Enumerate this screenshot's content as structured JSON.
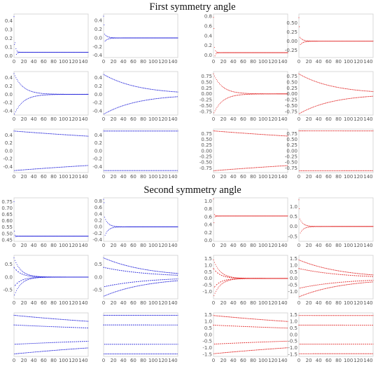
{
  "figure": {
    "sections": [
      {
        "title": "First symmetry angle"
      },
      {
        "title": "Second symmetry angle"
      }
    ]
  },
  "chart_data": [
    {
      "type": "scatter",
      "section": 0,
      "row": 0,
      "col": 0,
      "color": "#1f1fd9",
      "xlim": [
        0,
        150
      ],
      "ylim": [
        -0.02,
        0.48
      ],
      "xticks": [
        0,
        20,
        40,
        60,
        80,
        100,
        120,
        140
      ],
      "yticks": [
        0.0,
        0.1,
        0.2,
        0.3,
        0.4
      ],
      "ytick_labels": [
        "0.0",
        "0.1",
        "0.2",
        "0.3",
        "0.4"
      ],
      "series": [
        {
          "kind": "transient",
          "initial": [
            0.45,
            0.13
          ],
          "final": 0.04,
          "width": 0.3,
          "decay": 2,
          "halfperiod": 1
        }
      ]
    },
    {
      "type": "scatter",
      "section": 0,
      "row": 0,
      "col": 1,
      "color": "#1f1fd9",
      "xlim": [
        0,
        150
      ],
      "ylim": [
        -0.45,
        0.55
      ],
      "xticks": [
        0,
        20,
        40,
        60,
        80,
        100,
        120,
        140
      ],
      "yticks": [
        -0.4,
        -0.2,
        0.0,
        0.2,
        0.4
      ],
      "ytick_labels": [
        "-0.4",
        "-0.2",
        "0.0",
        "0.2",
        "0.4"
      ],
      "series": [
        {
          "kind": "transient",
          "initial": [
            0.5,
            0.3
          ],
          "final": 0.0,
          "width": 0.12,
          "decay": 6,
          "halfperiod": 1
        }
      ]
    },
    {
      "type": "scatter",
      "section": 0,
      "row": 0,
      "col": 2,
      "color": "#e02020",
      "xlim": [
        0,
        150
      ],
      "ylim": [
        -0.05,
        0.85
      ],
      "xticks": [
        0,
        20,
        40,
        60,
        80,
        100,
        120,
        140
      ],
      "yticks": [
        0.0,
        0.2,
        0.4,
        0.6,
        0.8
      ],
      "ytick_labels": [
        "0.0",
        "0.2",
        "0.4",
        "0.6",
        "0.8"
      ],
      "series": [
        {
          "kind": "transient",
          "initial": [
            0.78,
            0.55
          ],
          "final": 0.05,
          "width": 0.3,
          "decay": 2,
          "halfperiod": 1
        }
      ]
    },
    {
      "type": "scatter",
      "section": 0,
      "row": 0,
      "col": 3,
      "color": "#e02020",
      "xlim": [
        0,
        150
      ],
      "ylim": [
        -0.45,
        0.75
      ],
      "xticks": [
        0,
        20,
        40,
        60,
        80,
        100,
        120,
        140
      ],
      "yticks": [
        -0.25,
        0.0,
        0.25,
        0.5
      ],
      "ytick_labels": [
        "-0.25",
        "0.00",
        "0.25",
        "0.50"
      ],
      "series": [
        {
          "kind": "transient",
          "initial": [
            0.65,
            0.4
          ],
          "final": 0.0,
          "width": 0.15,
          "decay": 6,
          "halfperiod": 1
        }
      ]
    },
    {
      "type": "scatter",
      "section": 0,
      "row": 1,
      "col": 0,
      "color": "#1f1fd9",
      "xlim": [
        0,
        150
      ],
      "ylim": [
        -0.5,
        0.55
      ],
      "xticks": [
        0,
        20,
        40,
        60,
        80,
        100,
        120,
        140
      ],
      "yticks": [
        -0.4,
        -0.2,
        0.0,
        0.2,
        0.4
      ],
      "ytick_labels": [
        "-0.4",
        "-0.2",
        "0.0",
        "0.2",
        "0.4"
      ],
      "series": [
        {
          "kind": "envelope",
          "center": 0.0,
          "amp": 0.5,
          "decay": 18,
          "halfperiod": 1
        }
      ]
    },
    {
      "type": "scatter",
      "section": 0,
      "row": 1,
      "col": 1,
      "color": "#1f1fd9",
      "xlim": [
        0,
        150
      ],
      "ylim": [
        -0.5,
        0.55
      ],
      "xticks": [
        0,
        20,
        40,
        60,
        80,
        100,
        120,
        140
      ],
      "yticks": [
        -0.4,
        -0.2,
        0.0,
        0.2,
        0.4
      ],
      "ytick_labels": [
        "-0.4",
        "-0.2",
        "0.0",
        "0.2",
        "0.4"
      ],
      "series": [
        {
          "kind": "envelope",
          "center": 0.0,
          "amp": 0.48,
          "decay": 70,
          "halfperiod": 1
        }
      ]
    },
    {
      "type": "scatter",
      "section": 0,
      "row": 1,
      "col": 2,
      "color": "#e02020",
      "xlim": [
        0,
        150
      ],
      "ylim": [
        -0.9,
        0.95
      ],
      "xticks": [
        0,
        20,
        40,
        60,
        80,
        100,
        120,
        140
      ],
      "yticks": [
        -0.75,
        -0.5,
        -0.25,
        0.0,
        0.25,
        0.5,
        0.75
      ],
      "ytick_labels": [
        "-0.75",
        "-0.50",
        "-0.25",
        "0.00",
        "0.25",
        "0.50",
        "0.75"
      ],
      "series": [
        {
          "kind": "envelope",
          "center": 0.0,
          "amp": 0.85,
          "decay": 18,
          "halfperiod": 1
        }
      ]
    },
    {
      "type": "scatter",
      "section": 0,
      "row": 1,
      "col": 3,
      "color": "#e02020",
      "xlim": [
        0,
        150
      ],
      "ylim": [
        -0.9,
        0.95
      ],
      "xticks": [
        0,
        20,
        40,
        60,
        80,
        100,
        120,
        140
      ],
      "yticks": [
        -0.75,
        -0.5,
        -0.25,
        0.0,
        0.25,
        0.5,
        0.75
      ],
      "ytick_labels": [
        "-0.75",
        "-0.50",
        "-0.25",
        "0.00",
        "0.25",
        "0.50",
        "0.75"
      ],
      "series": [
        {
          "kind": "envelope",
          "center": 0.0,
          "amp": 0.85,
          "decay": 70,
          "halfperiod": 1
        }
      ]
    },
    {
      "type": "scatter",
      "section": 0,
      "row": 2,
      "col": 0,
      "color": "#1f1fd9",
      "xlim": [
        0,
        150
      ],
      "ylim": [
        -0.55,
        0.55
      ],
      "xticks": [
        0,
        20,
        40,
        60,
        80,
        100,
        120,
        140
      ],
      "yticks": [
        -0.4,
        -0.2,
        0.0,
        0.2,
        0.4
      ],
      "ytick_labels": [
        "-0.4",
        "-0.2",
        "0.0",
        "0.2",
        "0.4"
      ],
      "series": [
        {
          "kind": "envelope",
          "center": 0.0,
          "amp": 0.5,
          "decay": 500,
          "halfperiod": 1
        }
      ]
    },
    {
      "type": "scatter",
      "section": 0,
      "row": 2,
      "col": 1,
      "color": "#1f1fd9",
      "xlim": [
        0,
        150
      ],
      "ylim": [
        -0.55,
        0.55
      ],
      "xticks": [
        0,
        20,
        40,
        60,
        80,
        100,
        120,
        140
      ],
      "yticks": [
        -0.4,
        -0.2,
        0.0,
        0.2,
        0.4
      ],
      "ytick_labels": [
        "-0.4",
        "-0.2",
        "0.0",
        "0.2",
        "0.4"
      ],
      "series": [
        {
          "kind": "envelope",
          "center": 0.0,
          "amp": 0.5,
          "decay": 100000,
          "halfperiod": 1
        }
      ]
    },
    {
      "type": "scatter",
      "section": 0,
      "row": 2,
      "col": 2,
      "color": "#e02020",
      "xlim": [
        0,
        150
      ],
      "ylim": [
        -0.95,
        0.95
      ],
      "xticks": [
        0,
        20,
        40,
        60,
        80,
        100,
        120,
        140
      ],
      "yticks": [
        -0.75,
        -0.5,
        -0.25,
        0.0,
        0.25,
        0.5,
        0.75
      ],
      "ytick_labels": [
        "-0.75",
        "-0.50",
        "-0.25",
        "0.00",
        "0.25",
        "0.50",
        "0.75"
      ],
      "series": [
        {
          "kind": "envelope",
          "center": 0.0,
          "amp": 0.87,
          "decay": 500,
          "halfperiod": 1
        }
      ]
    },
    {
      "type": "scatter",
      "section": 0,
      "row": 2,
      "col": 3,
      "color": "#e02020",
      "xlim": [
        0,
        150
      ],
      "ylim": [
        -0.95,
        0.95
      ],
      "xticks": [
        0,
        20,
        40,
        60,
        80,
        100,
        120,
        140
      ],
      "yticks": [
        -0.75,
        -0.5,
        -0.25,
        0.0,
        0.25,
        0.5,
        0.75
      ],
      "ytick_labels": [
        "-0.75",
        "-0.50",
        "-0.25",
        "0.00",
        "0.25",
        "0.50",
        "0.75"
      ],
      "series": [
        {
          "kind": "envelope",
          "center": 0.0,
          "amp": 0.87,
          "decay": 100000,
          "halfperiod": 1
        }
      ]
    },
    {
      "type": "scatter",
      "section": 1,
      "row": 0,
      "col": 0,
      "color": "#1f1fd9",
      "xlim": [
        0,
        150
      ],
      "ylim": [
        0.44,
        0.78
      ],
      "xticks": [
        0,
        20,
        40,
        60,
        80,
        100,
        120,
        140
      ],
      "yticks": [
        0.45,
        0.5,
        0.55,
        0.6,
        0.65,
        0.7,
        0.75
      ],
      "ytick_labels": [
        "0.45",
        "0.50",
        "0.55",
        "0.60",
        "0.65",
        "0.70",
        "0.75"
      ],
      "series": [
        {
          "kind": "transient",
          "initial": [
            0.75,
            0.52
          ],
          "final": 0.48,
          "width": 0.02,
          "decay": 2,
          "halfperiod": 1
        }
      ]
    },
    {
      "type": "scatter",
      "section": 1,
      "row": 0,
      "col": 1,
      "color": "#1f1fd9",
      "xlim": [
        0,
        150
      ],
      "ylim": [
        -0.45,
        0.9
      ],
      "xticks": [
        0,
        20,
        40,
        60,
        80,
        100,
        120,
        140
      ],
      "yticks": [
        -0.4,
        -0.2,
        0.0,
        0.2,
        0.4,
        0.6,
        0.8
      ],
      "ytick_labels": [
        "-0.4",
        "-0.2",
        "0.0",
        "0.2",
        "0.4",
        "0.6",
        "0.8"
      ],
      "series": [
        {
          "kind": "transient",
          "initial": [
            0.85,
            0.75
          ],
          "final": 0.0,
          "width": 0.4,
          "decay": 7,
          "halfperiod": 1
        }
      ]
    },
    {
      "type": "scatter",
      "section": 1,
      "row": 0,
      "col": 2,
      "color": "#e02020",
      "xlim": [
        0,
        150
      ],
      "ylim": [
        -0.02,
        1.08
      ],
      "xticks": [
        0,
        20,
        40,
        60,
        80,
        100,
        120,
        140
      ],
      "yticks": [
        0.0,
        0.2,
        0.4,
        0.6,
        0.8,
        1.0
      ],
      "ytick_labels": [
        "0.0",
        "0.2",
        "0.4",
        "0.6",
        "0.8",
        "1.0"
      ],
      "series": [
        {
          "kind": "transient",
          "initial": [
            1.05,
            0.45
          ],
          "final": 0.62,
          "width": 0.1,
          "decay": 2,
          "halfperiod": 1
        }
      ]
    },
    {
      "type": "scatter",
      "section": 1,
      "row": 0,
      "col": 3,
      "color": "#e02020",
      "xlim": [
        0,
        150
      ],
      "ylim": [
        -0.75,
        1.45
      ],
      "xticks": [
        0,
        20,
        40,
        60,
        80,
        100,
        120,
        140
      ],
      "yticks": [
        -0.5,
        0.0,
        0.5,
        1.0
      ],
      "ytick_labels": [
        "-0.5",
        "0.0",
        "0.5",
        "1.0"
      ],
      "series": [
        {
          "kind": "transient",
          "initial": [
            1.35,
            0.9
          ],
          "final": 0.0,
          "width": 0.5,
          "decay": 7,
          "halfperiod": 1
        }
      ]
    },
    {
      "type": "scatter",
      "section": 1,
      "row": 1,
      "col": 0,
      "color": "#1f1fd9",
      "xlim": [
        0,
        150
      ],
      "ylim": [
        -0.85,
        0.85
      ],
      "xticks": [
        0,
        20,
        40,
        60,
        80,
        100,
        120,
        140
      ],
      "yticks": [
        -0.5,
        0.0,
        0.5
      ],
      "ytick_labels": [
        "-0.5",
        "0.0",
        "0.5"
      ],
      "series": [
        {
          "kind": "envelope",
          "center": 0.0,
          "amp": 0.75,
          "decay": 14,
          "halfperiod": 1
        },
        {
          "kind": "envelope",
          "center": 0.0,
          "amp": 0.38,
          "decay": 14,
          "halfperiod": 2
        }
      ]
    },
    {
      "type": "scatter",
      "section": 1,
      "row": 1,
      "col": 1,
      "color": "#1f1fd9",
      "xlim": [
        0,
        150
      ],
      "ylim": [
        -0.85,
        0.85
      ],
      "xticks": [
        0,
        20,
        40,
        60,
        80,
        100,
        120,
        140
      ],
      "yticks": [
        -0.5,
        0.0,
        0.5
      ],
      "ytick_labels": [
        "-0.5",
        "0.0",
        "0.5"
      ],
      "series": [
        {
          "kind": "envelope",
          "center": 0.0,
          "amp": 0.75,
          "decay": 90,
          "halfperiod": 1
        },
        {
          "kind": "envelope",
          "center": 0.0,
          "amp": 0.38,
          "decay": 90,
          "halfperiod": 2
        }
      ]
    },
    {
      "type": "scatter",
      "section": 1,
      "row": 1,
      "col": 2,
      "color": "#e02020",
      "xlim": [
        0,
        150
      ],
      "ylim": [
        -1.55,
        1.75
      ],
      "xticks": [
        0,
        20,
        40,
        60,
        80,
        100,
        120,
        140
      ],
      "yticks": [
        -1.0,
        -0.5,
        0.0,
        0.5,
        1.0,
        1.5
      ],
      "ytick_labels": [
        "-1.0",
        "-0.5",
        "0.0",
        "0.5",
        "1.0",
        "1.5"
      ],
      "series": [
        {
          "kind": "envelope",
          "center": 0.0,
          "amp": 1.4,
          "decay": 14,
          "halfperiod": 1
        },
        {
          "kind": "envelope",
          "center": 0.0,
          "amp": 0.75,
          "decay": 14,
          "halfperiod": 2
        }
      ]
    },
    {
      "type": "scatter",
      "section": 1,
      "row": 1,
      "col": 3,
      "color": "#e02020",
      "xlim": [
        0,
        150
      ],
      "ylim": [
        -1.55,
        1.75
      ],
      "xticks": [
        0,
        20,
        40,
        60,
        80,
        100,
        120,
        140
      ],
      "yticks": [
        -1.0,
        -0.5,
        0.0,
        0.5,
        1.0,
        1.5
      ],
      "ytick_labels": [
        "-1.0",
        "-0.5",
        "0.0",
        "0.5",
        "1.0",
        "1.5"
      ],
      "series": [
        {
          "kind": "envelope",
          "center": 0.0,
          "amp": 1.4,
          "decay": 90,
          "halfperiod": 1
        },
        {
          "kind": "envelope",
          "center": 0.0,
          "amp": 0.75,
          "decay": 90,
          "halfperiod": 2
        }
      ]
    },
    {
      "type": "scatter",
      "section": 1,
      "row": 2,
      "col": 0,
      "color": "#1f1fd9",
      "xlim": [
        0,
        150
      ],
      "ylim": [
        -0.9,
        0.9
      ],
      "xticks": [
        0,
        20,
        40,
        60,
        80,
        100,
        120,
        140
      ],
      "yticks": [],
      "ytick_labels": [],
      "series": [
        {
          "kind": "envelope",
          "center": 0.0,
          "amp": 0.8,
          "decay": 400,
          "halfperiod": 1
        },
        {
          "kind": "envelope",
          "center": 0.0,
          "amp": 0.4,
          "decay": 400,
          "halfperiod": 2
        }
      ]
    },
    {
      "type": "scatter",
      "section": 1,
      "row": 2,
      "col": 1,
      "color": "#1f1fd9",
      "xlim": [
        0,
        150
      ],
      "ylim": [
        -0.9,
        0.9
      ],
      "xticks": [
        0,
        20,
        40,
        60,
        80,
        100,
        120,
        140
      ],
      "yticks": [],
      "ytick_labels": [],
      "series": [
        {
          "kind": "envelope",
          "center": 0.0,
          "amp": 0.8,
          "decay": 100000,
          "halfperiod": 1
        },
        {
          "kind": "envelope",
          "center": 0.0,
          "amp": 0.4,
          "decay": 100000,
          "halfperiod": 2
        }
      ]
    },
    {
      "type": "scatter",
      "section": 1,
      "row": 2,
      "col": 2,
      "color": "#e02020",
      "xlim": [
        0,
        150
      ],
      "ylim": [
        -1.65,
        1.65
      ],
      "xticks": [
        0,
        20,
        40,
        60,
        80,
        100,
        120,
        140
      ],
      "yticks": [
        -1.5,
        -1.0,
        -0.5,
        0.0,
        0.5,
        1.0,
        1.5
      ],
      "ytick_labels": [
        "-1.5",
        "-1.0",
        "-0.5",
        "0.0",
        "0.5",
        "1.0",
        "1.5"
      ],
      "series": [
        {
          "kind": "envelope",
          "center": 0.0,
          "amp": 1.45,
          "decay": 400,
          "halfperiod": 1
        },
        {
          "kind": "envelope",
          "center": 0.0,
          "amp": 0.72,
          "decay": 400,
          "halfperiod": 2
        }
      ]
    },
    {
      "type": "scatter",
      "section": 1,
      "row": 2,
      "col": 3,
      "color": "#e02020",
      "xlim": [
        0,
        150
      ],
      "ylim": [
        -1.65,
        1.65
      ],
      "xticks": [
        0,
        20,
        40,
        60,
        80,
        100,
        120,
        140
      ],
      "yticks": [
        -1.5,
        -1.0,
        -0.5,
        0.0,
        0.5,
        1.0,
        1.5
      ],
      "ytick_labels": [
        "-1.5",
        "-1.0",
        "-0.5",
        "0.0",
        "0.5",
        "1.0",
        "1.5"
      ],
      "series": [
        {
          "kind": "envelope",
          "center": 0.0,
          "amp": 1.45,
          "decay": 100000,
          "halfperiod": 1
        },
        {
          "kind": "envelope",
          "center": 0.0,
          "amp": 0.72,
          "decay": 100000,
          "halfperiod": 2
        }
      ]
    }
  ]
}
